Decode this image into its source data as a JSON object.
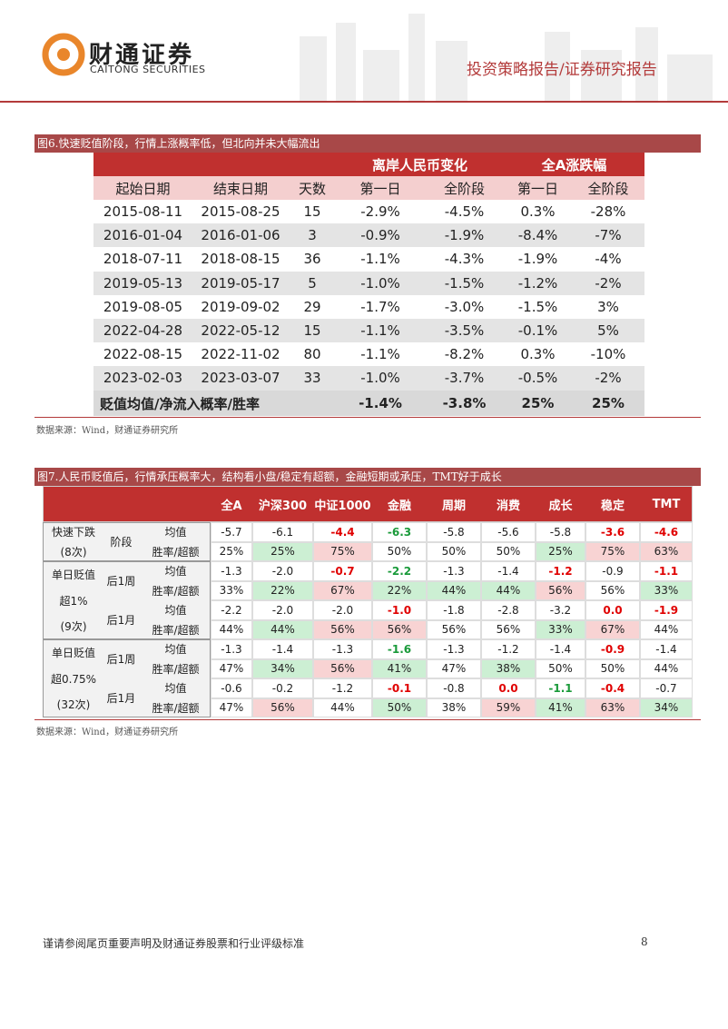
{
  "header": {
    "company": "财通证券",
    "company_en": "CAITONG SECURITIES",
    "report_type": "投资策略报告/证券研究报告"
  },
  "figure6": {
    "title": "图6.快速贬值阶段，行情上涨概率低，但北向并未大幅流出",
    "header_groups": [
      "离岸人民币变化",
      "全A涨跌幅"
    ],
    "columns": [
      "起始日期",
      "结束日期",
      "天数",
      "第一日",
      "全阶段",
      "第一日",
      "全阶段"
    ],
    "rows": [
      [
        "2015-08-11",
        "2015-08-25",
        "15",
        "-2.9%",
        "-4.5%",
        "0.3%",
        "-28%"
      ],
      [
        "2016-01-04",
        "2016-01-06",
        "3",
        "-0.9%",
        "-1.9%",
        "-8.4%",
        "-7%"
      ],
      [
        "2018-07-11",
        "2018-08-15",
        "36",
        "-1.1%",
        "-4.3%",
        "-1.9%",
        "-4%"
      ],
      [
        "2019-05-13",
        "2019-05-17",
        "5",
        "-1.0%",
        "-1.5%",
        "-1.2%",
        "-2%"
      ],
      [
        "2019-08-05",
        "2019-09-02",
        "29",
        "-1.7%",
        "-3.0%",
        "-1.5%",
        "3%"
      ],
      [
        "2022-04-28",
        "2022-05-12",
        "15",
        "-1.1%",
        "-3.5%",
        "-0.1%",
        "5%"
      ],
      [
        "2022-08-15",
        "2022-11-02",
        "80",
        "-1.1%",
        "-8.2%",
        "0.3%",
        "-10%"
      ],
      [
        "2023-02-03",
        "2023-03-07",
        "33",
        "-1.0%",
        "-3.7%",
        "-0.5%",
        "-2%"
      ]
    ],
    "summary": {
      "label": "贬值均值/净流入概率/胜率",
      "values": [
        "-1.4%",
        "-3.8%",
        "25%",
        "25%"
      ]
    },
    "source": "数据来源：Wind，财通证券研究所"
  },
  "figure7": {
    "title": "图7.人民币贬值后，行情承压概率大，结构看小盘/稳定有超额，金融短期或承压，TMT好于成长",
    "columns": [
      "全A",
      "沪深300",
      "中证1000",
      "金融",
      "周期",
      "消费",
      "成长",
      "稳定",
      "TMT"
    ],
    "groups": [
      {
        "label": [
          "快速下跌",
          "(8次)"
        ],
        "periods": [
          {
            "label": "阶段",
            "rows": [
              {
                "metric": "均值",
                "values": [
                  "-5.7",
                  "-6.1",
                  "-4.4",
                  "-6.3",
                  "-5.8",
                  "-5.6",
                  "-5.8",
                  "-3.6",
                  "-4.6"
                ]
              },
              {
                "metric": "胜率/超额",
                "values": [
                  "25%",
                  "25%",
                  "75%",
                  "50%",
                  "50%",
                  "50%",
                  "25%",
                  "75%",
                  "63%"
                ]
              }
            ]
          }
        ]
      },
      {
        "label": [
          "单日贬值",
          "超1%",
          "(9次)"
        ],
        "periods": [
          {
            "label": "后1周",
            "rows": [
              {
                "metric": "均值",
                "values": [
                  "-1.3",
                  "-2.0",
                  "-0.7",
                  "-2.2",
                  "-1.3",
                  "-1.4",
                  "-1.2",
                  "-0.9",
                  "-1.1"
                ]
              },
              {
                "metric": "胜率/超额",
                "values": [
                  "33%",
                  "22%",
                  "67%",
                  "22%",
                  "44%",
                  "44%",
                  "56%",
                  "56%",
                  "33%"
                ]
              }
            ]
          },
          {
            "label": "后1月",
            "rows": [
              {
                "metric": "均值",
                "values": [
                  "-2.2",
                  "-2.0",
                  "-2.0",
                  "-1.0",
                  "-1.8",
                  "-2.8",
                  "-3.2",
                  "0.0",
                  "-1.9"
                ]
              },
              {
                "metric": "胜率/超额",
                "values": [
                  "44%",
                  "44%",
                  "56%",
                  "56%",
                  "56%",
                  "56%",
                  "33%",
                  "67%",
                  "44%"
                ]
              }
            ]
          }
        ]
      },
      {
        "label": [
          "单日贬值",
          "超0.75%",
          "(32次)"
        ],
        "periods": [
          {
            "label": "后1周",
            "rows": [
              {
                "metric": "均值",
                "values": [
                  "-1.3",
                  "-1.4",
                  "-1.3",
                  "-1.6",
                  "-1.3",
                  "-1.2",
                  "-1.4",
                  "-0.9",
                  "-1.4"
                ]
              },
              {
                "metric": "胜率/超额",
                "values": [
                  "47%",
                  "34%",
                  "56%",
                  "41%",
                  "47%",
                  "38%",
                  "50%",
                  "50%",
                  "44%"
                ]
              }
            ]
          },
          {
            "label": "后1月",
            "rows": [
              {
                "metric": "均值",
                "values": [
                  "-0.6",
                  "-0.2",
                  "-1.2",
                  "-0.1",
                  "-0.8",
                  "0.0",
                  "-1.1",
                  "-0.4",
                  "-0.7"
                ]
              },
              {
                "metric": "胜率/超额",
                "values": [
                  "47%",
                  "56%",
                  "44%",
                  "50%",
                  "38%",
                  "59%",
                  "41%",
                  "63%",
                  "34%"
                ]
              }
            ]
          }
        ]
      }
    ],
    "source": "数据来源：Wind，财通证券研究所"
  },
  "footer": {
    "disclaimer": "谨请参阅尾页重要声明及财通证券股票和行业评级标准",
    "page": "8"
  }
}
